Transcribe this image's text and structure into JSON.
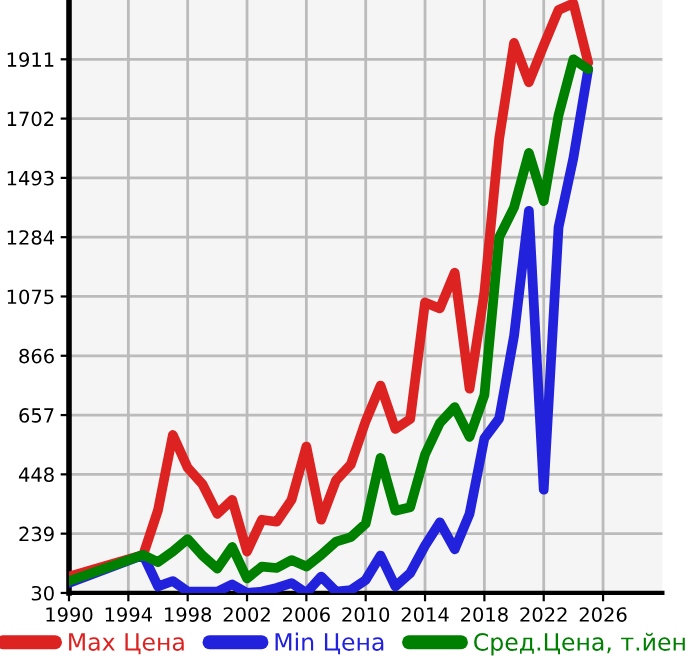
{
  "chart_data": {
    "type": "line",
    "x": [
      1990,
      1995,
      1996,
      1997,
      1998,
      1999,
      2000,
      2001,
      2002,
      2003,
      2004,
      2005,
      2006,
      2007,
      2008,
      2009,
      2010,
      2011,
      2012,
      2013,
      2014,
      2015,
      2016,
      2017,
      2018,
      2019,
      2020,
      2021,
      2022,
      2023,
      2024,
      2025
    ],
    "series": [
      {
        "name": "Max Цена",
        "color": "#dd2222",
        "values": [
          88,
          164,
          322,
          587,
          471,
          413,
          309,
          358,
          176,
          288,
          281,
          358,
          546,
          288,
          427,
          483,
          636,
          761,
          608,
          643,
          1054,
          1033,
          1159,
          750,
          1090,
          1632,
          1969,
          1830,
          1960,
          2085,
          2108,
          1899
        ]
      },
      {
        "name": "Min Цена",
        "color": "#2222dd",
        "values": [
          65,
          164,
          53,
          72,
          35,
          35,
          35,
          60,
          30,
          35,
          48,
          65,
          30,
          88,
          35,
          40,
          76,
          162,
          53,
          100,
          197,
          279,
          184,
          309,
          575,
          645,
          936,
          1377,
          394,
          1319,
          1563,
          1876
        ]
      },
      {
        "name": "Сред.Цена, т.йен",
        "color": "#008000",
        "values": [
          72,
          164,
          139,
          176,
          220,
          162,
          116,
          192,
          81,
          123,
          118,
          146,
          123,
          164,
          211,
          227,
          274,
          506,
          320,
          332,
          518,
          629,
          685,
          580,
          727,
          1284,
          1389,
          1581,
          1411,
          1714,
          1911,
          1876
        ]
      }
    ],
    "xlim": [
      1990,
      2030
    ],
    "xticks": [
      1990,
      1994,
      1998,
      2002,
      2006,
      2010,
      2014,
      2018,
      2022,
      2026
    ],
    "ylim": [
      30,
      2120
    ],
    "yticks": [
      30,
      239,
      448,
      657,
      866,
      1075,
      1284,
      1493,
      1702,
      1911
    ],
    "grid": true,
    "legend": "bottom",
    "marker": "none",
    "line_style": "solid"
  }
}
